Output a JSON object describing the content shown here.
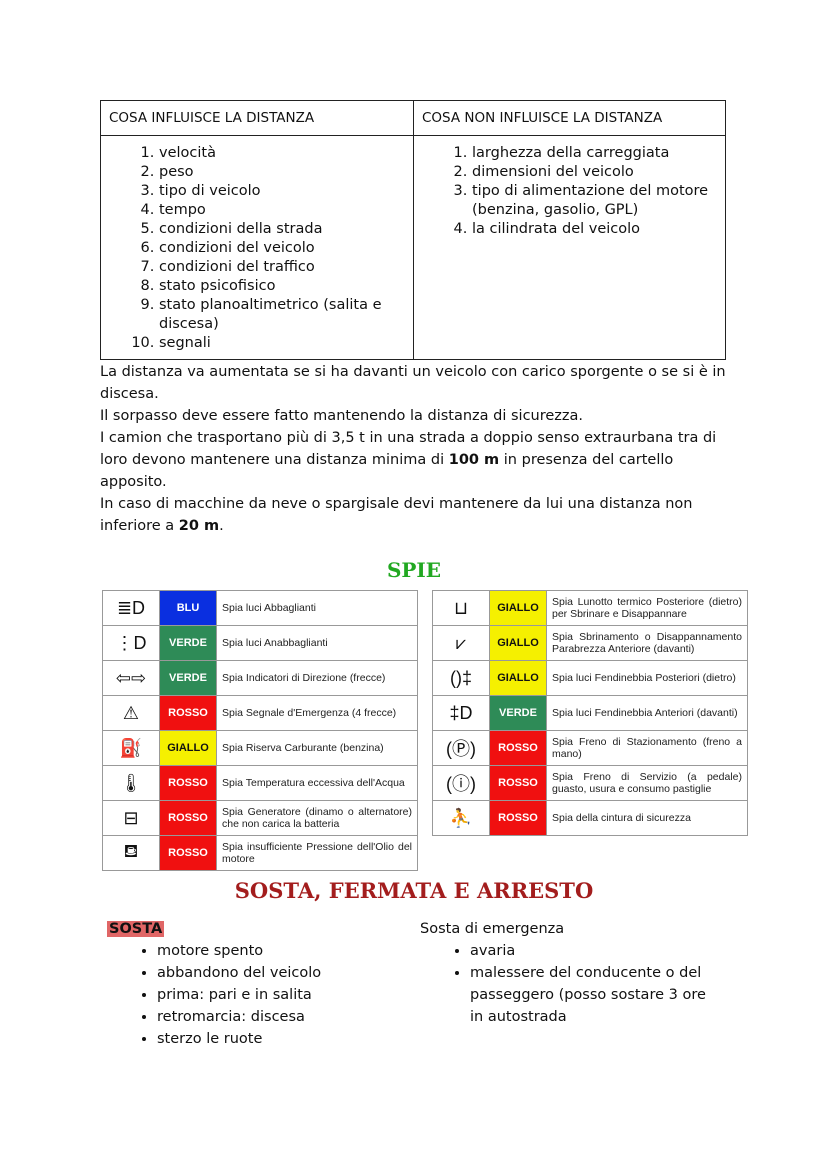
{
  "distance_table": {
    "headers": [
      "COSA INFLUISCE LA DISTANZA",
      "COSA NON INFLUISCE LA DISTANZA"
    ],
    "influences": [
      "velocità",
      "peso",
      "tipo di veicolo",
      "tempo",
      "condizioni della strada",
      "condizioni del veicolo",
      "condizioni del traffico",
      "stato psicofisico",
      "stato planoaltimetrico (salita e discesa)",
      "segnali"
    ],
    "not_influences": [
      "larghezza della carreggiata",
      "dimensioni del veicolo",
      "tipo di alimentazione del motore (benzina, gasolio, GPL)",
      "la cilindrata del veicolo"
    ]
  },
  "paragraphs": {
    "p1": "La distanza va aumentata se si ha davanti un veicolo con carico sporgente o se si è in discesa.",
    "p2": "Il sorpasso deve essere fatto mantenendo la distanza di sicurezza.",
    "p3a": "I camion che trasportano più di 3,5 t in una strada a doppio senso extraurbana tra di loro devono mantenere una distanza minima di ",
    "p3b": "100 m",
    "p3c": " in presenza del cartello apposito.",
    "p4a": "In caso di macchine da neve o spargisale devi mantenere da lui una distanza non inferiore a ",
    "p4b": "20 m",
    "p4c": "."
  },
  "spie_title": "SPIE",
  "colors": {
    "BLU": "#0a2fe0",
    "VERDE": "#2e8b57",
    "ROSSO": "#f01010",
    "GIALLO": "#f5f000"
  },
  "spie_left": [
    {
      "icon": "high-beam-icon",
      "glyph": "≣D",
      "color": "BLU",
      "text": "Spia luci Abbaglianti"
    },
    {
      "icon": "low-beam-icon",
      "glyph": "⋮D",
      "color": "VERDE",
      "text": "Spia luci Anabbaglianti"
    },
    {
      "icon": "turn-signal-icon",
      "glyph": "⇦⇨",
      "color": "VERDE",
      "text": "Spia Indicatori di Direzione (frecce)"
    },
    {
      "icon": "hazard-triangle-icon",
      "glyph": "⚠",
      "color": "ROSSO",
      "text": "Spia Segnale d'Emergenza (4 frecce)"
    },
    {
      "icon": "fuel-pump-icon",
      "glyph": "⛽",
      "color": "GIALLO",
      "text": "Spia Riserva Carburante (benzina)"
    },
    {
      "icon": "coolant-temperature-icon",
      "glyph": "🌡",
      "color": "ROSSO",
      "text": "Spia Temperatura eccessiva dell'Acqua"
    },
    {
      "icon": "battery-icon",
      "glyph": "⊟",
      "color": "ROSSO",
      "text": "Spia Generatore (dinamo o alternatore) che non carica la batteria"
    },
    {
      "icon": "oil-can-icon",
      "glyph": "⛾",
      "color": "ROSSO",
      "text": "Spia insufficiente Pressione dell'Olio del motore"
    }
  ],
  "spie_right": [
    {
      "icon": "rear-defrost-icon",
      "glyph": "⊔",
      "color": "GIALLO",
      "text": "Spia Lunotto termico Posteriore (dietro) per Sbrinare e Disappannare"
    },
    {
      "icon": "front-defrost-icon",
      "glyph": "⩗",
      "color": "GIALLO",
      "text": "Spia Sbrinamento o Disappannamento Parabrezza Anteriore (davanti)"
    },
    {
      "icon": "rear-fog-light-icon",
      "glyph": "()‡",
      "color": "GIALLO",
      "text": "Spia luci Fendinebbia Posteriori (dietro)"
    },
    {
      "icon": "front-fog-light-icon",
      "glyph": "‡D",
      "color": "VERDE",
      "text": "Spia luci Fendinebbia Anteriori (davanti)"
    },
    {
      "icon": "parking-brake-icon",
      "glyph": "(Ⓟ)",
      "color": "ROSSO",
      "text": "Spia Freno di Stazionamento (freno a mano)"
    },
    {
      "icon": "brake-warning-icon",
      "glyph": "(ⓘ)",
      "color": "ROSSO",
      "text": "Spia Freno di Servizio (a pedale) guasto, usura e consumo pastiglie"
    },
    {
      "icon": "seatbelt-icon",
      "glyph": "⛹",
      "color": "ROSSO",
      "text": "Spia della cintura di sicurezza"
    }
  ],
  "sosta_title": "SOSTA, FERMATA E ARRESTO",
  "sosta": {
    "label": "SOSTA",
    "items": [
      "motore spento",
      "abbandono del veicolo",
      "prima: pari e in salita",
      "retromarcia: discesa",
      "sterzo le ruote"
    ]
  },
  "sosta_emergenza": {
    "label": "Sosta di emergenza",
    "items": [
      "avaria",
      "malessere del conducente o del passeggero (posso sostare 3 ore in autostrada"
    ]
  }
}
